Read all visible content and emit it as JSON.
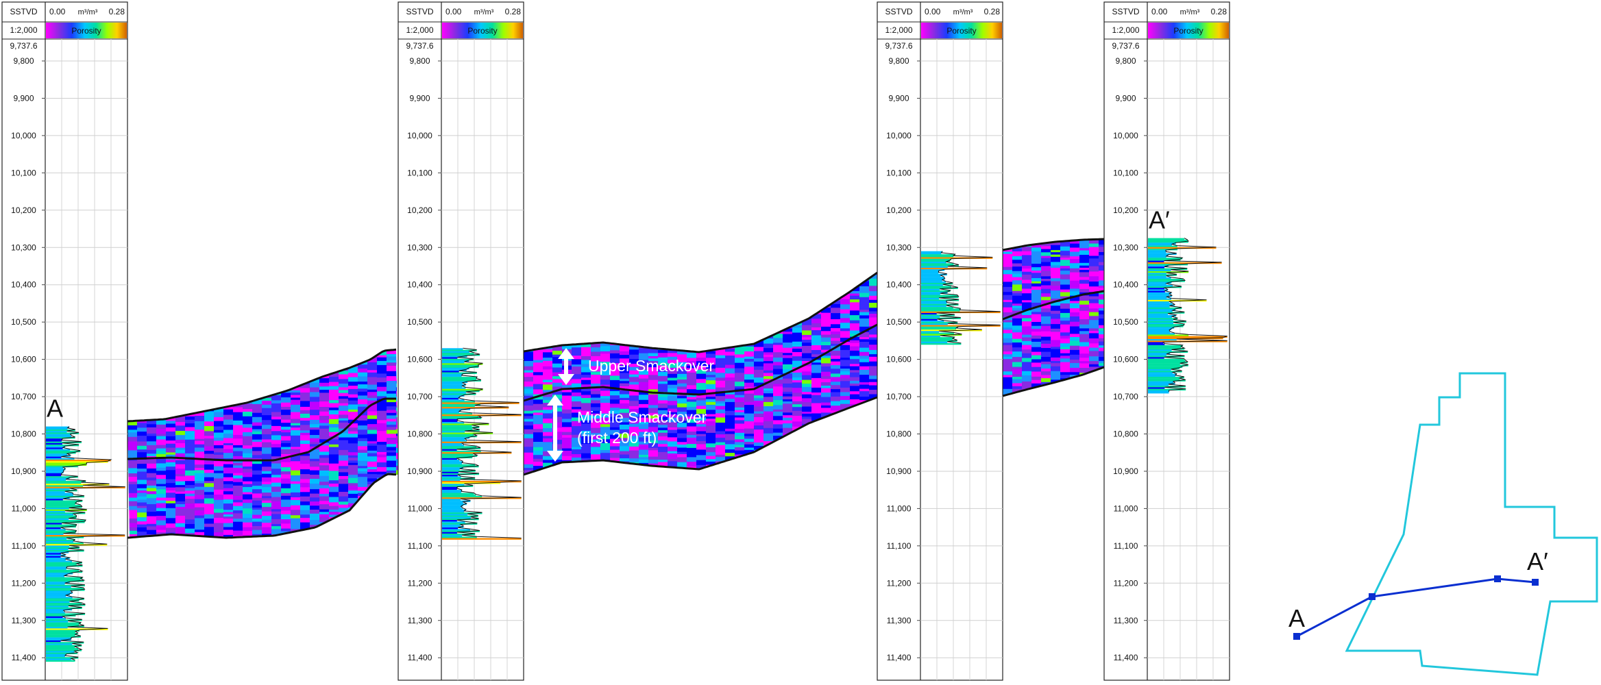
{
  "well_header": {
    "depth_header": "SSTVD",
    "scale": "1:2,000",
    "por_min": "0.00",
    "por_unit": "m³/m³",
    "por_max": "0.28",
    "por_name": "Porosity",
    "top_depth": "9,737.6"
  },
  "depth_ticks": [
    "9,800",
    "9,900",
    "10,000",
    "10,100",
    "10,200",
    "10,300",
    "10,400",
    "10,500",
    "10,600",
    "10,700",
    "10,800",
    "10,900",
    "11,000",
    "11,100",
    "11,200",
    "11,300",
    "11,400"
  ],
  "wells": [
    {
      "label": "A",
      "data_top_ft": 10780,
      "data_base_ft": 11410
    },
    {
      "label": "",
      "data_top_ft": 10570,
      "data_base_ft": 11080
    },
    {
      "label": "",
      "data_top_ft": 10310,
      "data_base_ft": 10560
    },
    {
      "label": "A′",
      "data_top_ft": 10275,
      "data_base_ft": 10690
    }
  ],
  "annotations": {
    "upper": "Upper Smackover",
    "middle_line1": "Middle Smackover",
    "middle_line2": "(first 200 ft)"
  },
  "map": {
    "label_start": "A",
    "label_end": "A′",
    "outline_color": "#22c7dc",
    "line_color": "#0a2fd0"
  },
  "colors": {
    "porosity_scale": [
      "#ff00ff",
      "#8a2be2",
      "#0000ff",
      "#00bfff",
      "#00e0a0",
      "#7cfc00",
      "#ffff00",
      "#ff8c00"
    ]
  }
}
